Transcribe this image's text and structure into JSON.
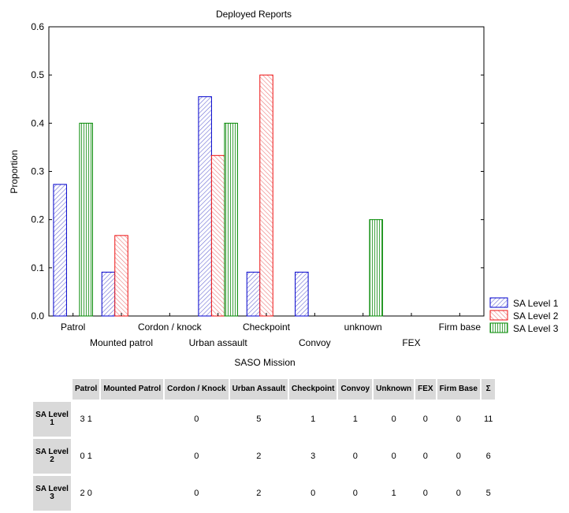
{
  "chart_data": {
    "type": "bar",
    "title": "Deployed Reports",
    "xlabel": "SASO Mission",
    "ylabel": "Proportion",
    "ylim": [
      0,
      0.6
    ],
    "yticks": [
      "0.0",
      "0.1",
      "0.2",
      "0.3",
      "0.4",
      "0.5",
      "0.6"
    ],
    "categories": [
      "Patrol",
      "Mounted patrol",
      "Cordon / knock",
      "Urban assault",
      "Checkpoint",
      "Convoy",
      "unknown",
      "FEX",
      "Firm base"
    ],
    "series": [
      {
        "name": "SA Level 1",
        "color": "#0000cc",
        "fill": "#c8c8f2",
        "pattern": "diagonal-left",
        "values": [
          0.273,
          0.091,
          0,
          0.455,
          0.091,
          0.091,
          0,
          0,
          0
        ]
      },
      {
        "name": "SA Level 2",
        "color": "#ee1111",
        "fill": "#f7c8c8",
        "pattern": "diagonal-right",
        "values": [
          0,
          0.167,
          0,
          0.333,
          0.5,
          0,
          0,
          0,
          0
        ]
      },
      {
        "name": "SA Level 3",
        "color": "#008800",
        "fill": "#d4ecd4",
        "pattern": "vertical",
        "values": [
          0.4,
          0,
          0,
          0.4,
          0,
          0,
          0.2,
          0,
          0
        ]
      }
    ],
    "legend_position": "bottom-right",
    "grid": false
  },
  "table": {
    "headers": [
      "Patrol",
      "Mounted Patrol",
      "Cordon / Knock",
      "Urban Assault",
      "Checkpoint",
      "Convoy",
      "Unknown",
      "FEX",
      "Firm Base",
      "Σ"
    ],
    "rows": [
      {
        "label": "SA Level 1",
        "cells": [
          "3 1",
          "",
          "0",
          "5",
          "1",
          "1",
          "0",
          "0",
          "0",
          "11"
        ]
      },
      {
        "label": "SA Level 2",
        "cells": [
          "0 1",
          "",
          "0",
          "2",
          "3",
          "0",
          "0",
          "0",
          "0",
          "6"
        ]
      },
      {
        "label": "SA Level 3",
        "cells": [
          "2 0",
          "",
          "0",
          "2",
          "0",
          "0",
          "1",
          "0",
          "0",
          "5"
        ]
      }
    ]
  }
}
